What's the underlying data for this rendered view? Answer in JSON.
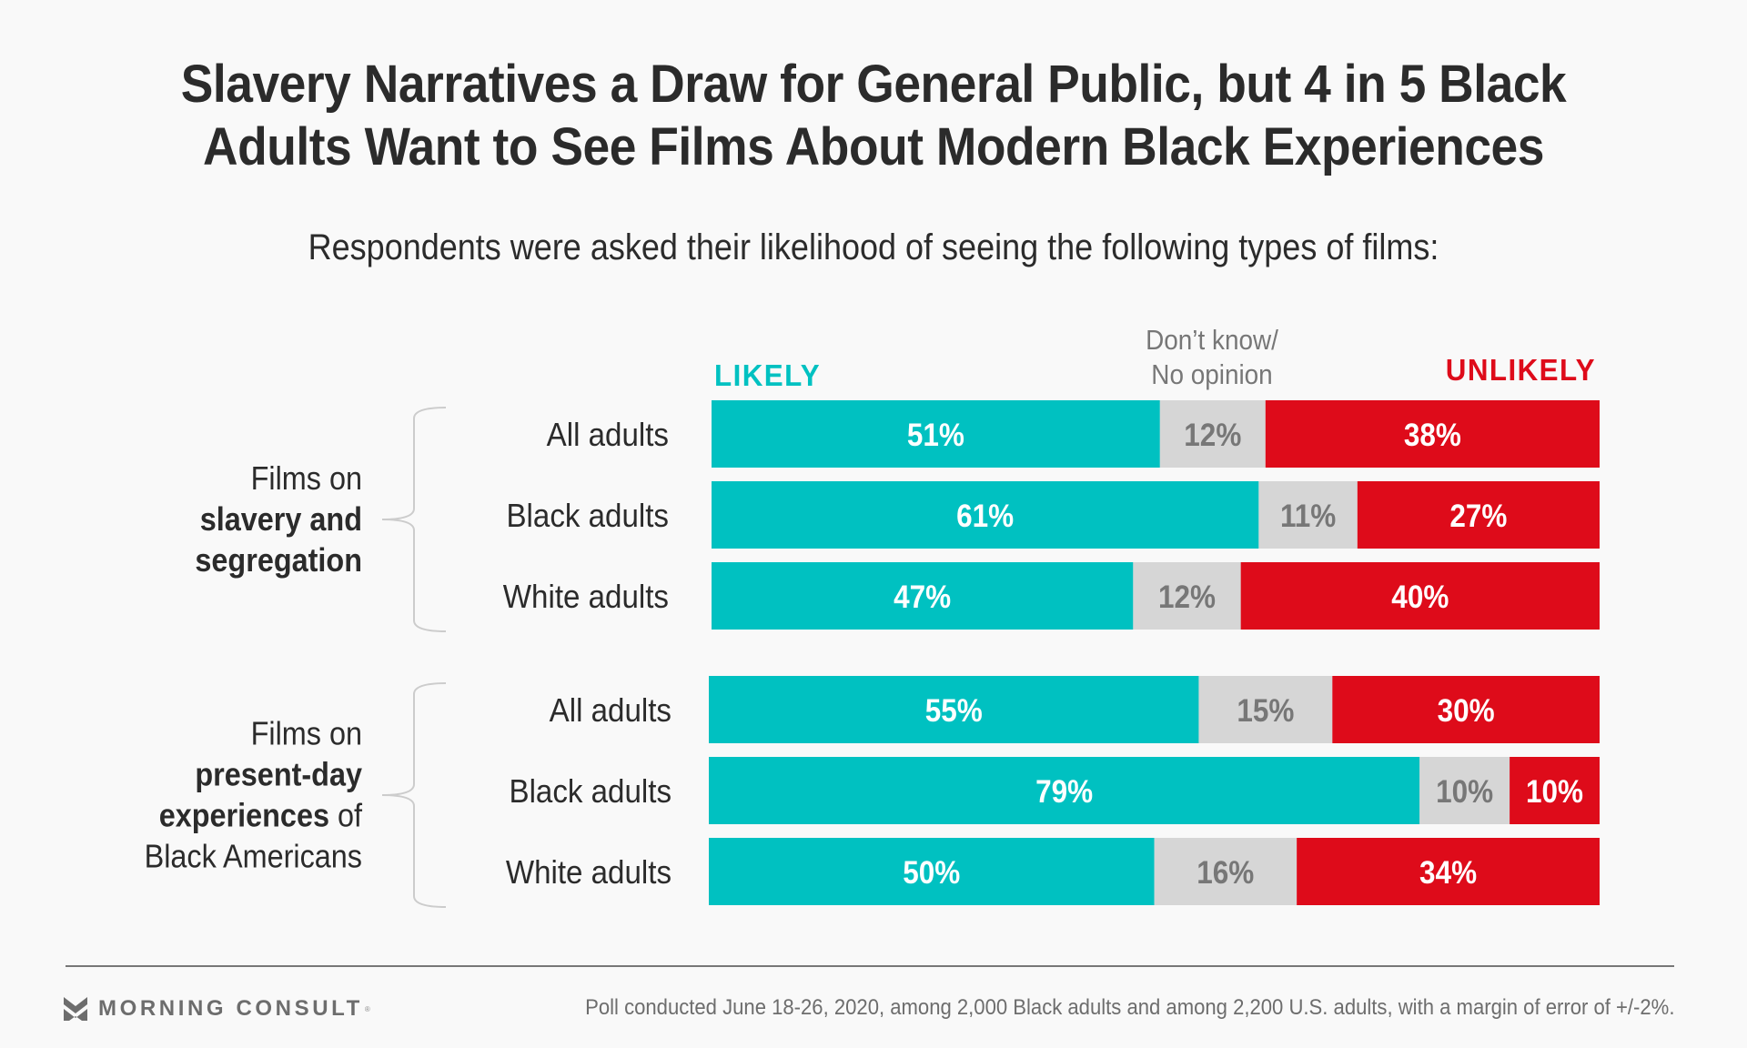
{
  "header": {
    "title_line1": "Slavery Narratives a Draw for General Public, but 4 in 5 Black",
    "title_line2": "Adults Want to See Films About Modern Black Experiences",
    "subtitle": "Respondents were asked their likelihood of seeing the following types of films:"
  },
  "colors": {
    "likely": "#00c1c1",
    "dont_know": "#d6d6d6",
    "unlikely": "#de0b1a",
    "dont_know_text": "#777777",
    "bar_text": "#ffffff",
    "text": "#2b2b2b",
    "brace": "#cccccc"
  },
  "chart_data": {
    "type": "bar",
    "orientation": "horizontal",
    "stacked": true,
    "title": "Slavery Narratives a Draw for General Public, but 4 in 5 Black Adults Want to See Films About Modern Black Experiences",
    "subtitle": "Respondents were asked their likelihood of seeing the following types of films:",
    "xlabel": "",
    "ylabel": "",
    "xlim": [
      0,
      100
    ],
    "unit": "%",
    "grid": false,
    "legend": {
      "placement": "top",
      "entries": [
        {
          "key": "likely",
          "label": "LIKELY"
        },
        {
          "key": "dont_know",
          "label_line1": "Don’t know/",
          "label_line2": "No opinion"
        },
        {
          "key": "unlikely",
          "label": "UNLIKELY"
        }
      ]
    },
    "series": [
      {
        "name": "Likely",
        "key": "likely"
      },
      {
        "name": "Don't know/No opinion",
        "key": "dont_know"
      },
      {
        "name": "Unlikely",
        "key": "unlikely"
      }
    ],
    "groups": [
      {
        "label_parts": [
          [
            {
              "text": "Films on",
              "bold": false
            }
          ],
          [
            {
              "text": "slavery and",
              "bold": true
            }
          ],
          [
            {
              "text": "segregation",
              "bold": true
            }
          ]
        ],
        "categories": [
          "All adults",
          "Black adults",
          "White adults"
        ],
        "values": {
          "likely": [
            51,
            61,
            47
          ],
          "dont_know": [
            12,
            11,
            12
          ],
          "unlikely": [
            38,
            27,
            40
          ]
        }
      },
      {
        "label_parts": [
          [
            {
              "text": "Films on",
              "bold": false
            }
          ],
          [
            {
              "text": "present-day",
              "bold": true
            }
          ],
          [
            {
              "text": "experiences",
              "bold": true
            },
            {
              "text": " of",
              "bold": false
            }
          ],
          [
            {
              "text": "Black Americans",
              "bold": false
            }
          ]
        ],
        "categories": [
          "All adults",
          "Black adults",
          "White adults"
        ],
        "values": {
          "likely": [
            55,
            79,
            50
          ],
          "dont_know": [
            15,
            10,
            16
          ],
          "unlikely": [
            30,
            10,
            34
          ]
        }
      }
    ]
  },
  "footer": {
    "brand": "MORNING CONSULT",
    "brand_mark": "®",
    "note": "Poll conducted June 18-26, 2020, among 2,000 Black adults and among 2,200 U.S. adults, with a margin of error of +/-2%."
  }
}
